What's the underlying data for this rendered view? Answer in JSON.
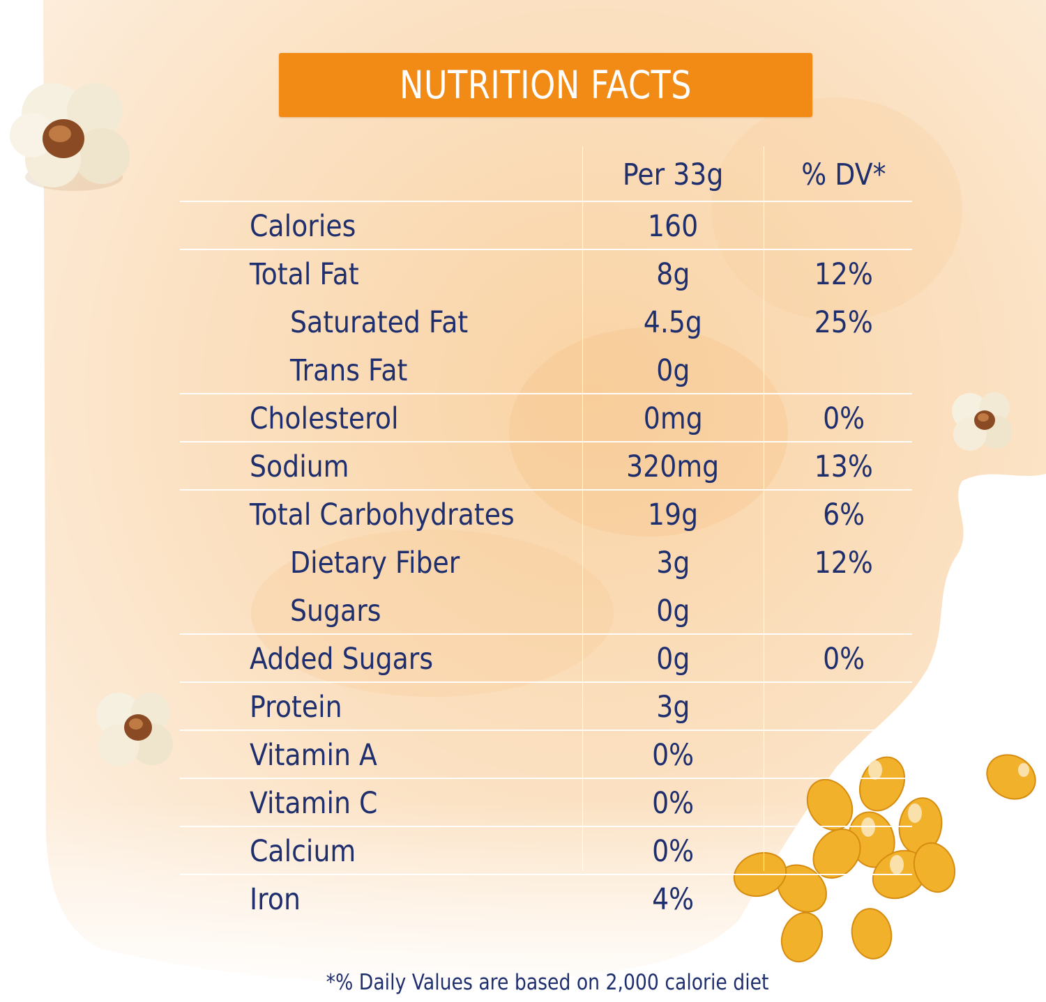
{
  "title": "NUTRITION FACTS",
  "columns": {
    "amount_header": "Per 33g",
    "dv_header": "% DV*"
  },
  "rows": [
    {
      "name": "Calories",
      "amount": "160",
      "dv": ""
    },
    {
      "name": "Total Fat",
      "amount": "8g",
      "dv": "12%"
    },
    {
      "name": "Saturated Fat",
      "amount": "4.5g",
      "dv": "25%",
      "indent": true
    },
    {
      "name": "Trans Fat",
      "amount": "0g",
      "dv": "",
      "indent": true
    },
    {
      "name": "Cholesterol",
      "amount": "0mg",
      "dv": "0%"
    },
    {
      "name": "Sodium",
      "amount": "320mg",
      "dv": "13%"
    },
    {
      "name": "Total Carbohydrates",
      "amount": "19g",
      "dv": "6%"
    },
    {
      "name": "Dietary Fiber",
      "amount": "3g",
      "dv": "12%",
      "indent": true
    },
    {
      "name": "Sugars",
      "amount": "0g",
      "dv": "",
      "indent": true
    },
    {
      "name": "Added Sugars",
      "amount": "0g",
      "dv": "0%"
    },
    {
      "name": "Protein",
      "amount": "3g",
      "dv": ""
    },
    {
      "name": "Vitamin A",
      "amount": "0%",
      "dv": ""
    },
    {
      "name": "Vitamin C",
      "amount": "0%",
      "dv": ""
    },
    {
      "name": "Calcium",
      "amount": "0%",
      "dv": ""
    },
    {
      "name": "Iron",
      "amount": "4%",
      "dv": ""
    }
  ],
  "footnote": "*% Daily Values are based on 2,000 calorie diet",
  "colors": {
    "title_bar": "#f28a16",
    "text": "#1f2f6e",
    "backdrop": "#fbe2c4"
  },
  "decorations": [
    "popcorn-icon",
    "popcorn-icon",
    "popcorn-icon",
    "corn-kernels-icon"
  ]
}
